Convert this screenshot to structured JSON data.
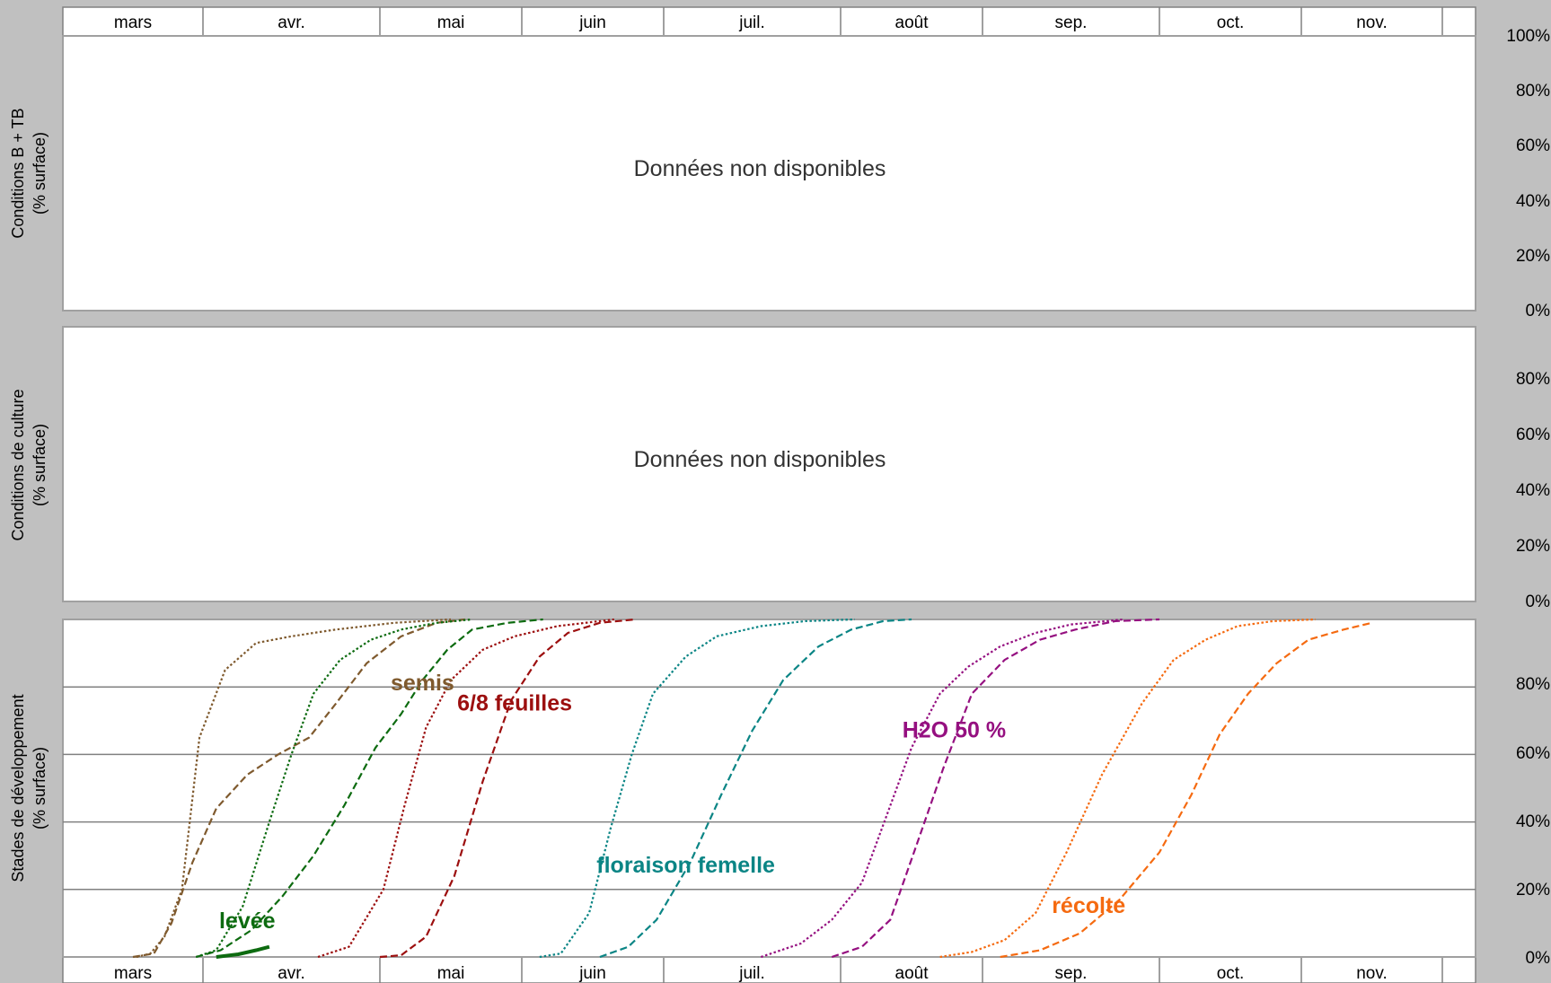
{
  "months": [
    "mars",
    "avr.",
    "mai",
    "juin",
    "juil.",
    "août",
    "sep.",
    "oct.",
    "nov."
  ],
  "panels": [
    {
      "ylabel_line1": "Conditions B + TB",
      "ylabel_line2": "(% surface)",
      "message": "Données non disponibles",
      "ticks": [
        "100%",
        "80%",
        "60%",
        "40%",
        "20%",
        "0%"
      ]
    },
    {
      "ylabel_line1": "Conditions de culture",
      "ylabel_line2": "(% surface)",
      "message": "Données non disponibles",
      "ticks": [
        "80%",
        "60%",
        "40%",
        "20%",
        "0%"
      ]
    },
    {
      "ylabel_line1": "Stades de développement",
      "ylabel_line2": "(% surface)",
      "ticks": [
        "80%",
        "60%",
        "40%",
        "20%",
        "0%"
      ]
    }
  ],
  "chart_data": {
    "type": "line",
    "x_unit": "month",
    "ylim": [
      0,
      100
    ],
    "grid": true,
    "series": [
      {
        "name": "semis",
        "color": "#7f5a2e",
        "label_pos": [
          4.6,
          79
        ],
        "lines": [
          {
            "style": "dotted",
            "points": [
              [
                1.05,
                0
              ],
              [
                1.25,
                1
              ],
              [
                1.45,
                6
              ],
              [
                1.7,
                20
              ],
              [
                1.95,
                65
              ],
              [
                2.25,
                85
              ],
              [
                2.6,
                93
              ],
              [
                3.0,
                95
              ],
              [
                3.5,
                97
              ],
              [
                4.2,
                99
              ],
              [
                5.0,
                100
              ]
            ]
          },
          {
            "style": "dashed",
            "points": [
              [
                1.0,
                0
              ],
              [
                1.3,
                1
              ],
              [
                1.55,
                10
              ],
              [
                1.85,
                28
              ],
              [
                2.15,
                44
              ],
              [
                2.5,
                54
              ],
              [
                2.85,
                60
              ],
              [
                3.2,
                65
              ],
              [
                3.5,
                75
              ],
              [
                3.85,
                87
              ],
              [
                4.3,
                95
              ],
              [
                4.8,
                99
              ],
              [
                5.2,
                100
              ]
            ]
          }
        ]
      },
      {
        "name": "levée",
        "color": "#0d6b10",
        "label_pos": [
          2.5,
          8.5
        ],
        "lines": [
          {
            "style": "dotted",
            "points": [
              [
                1.9,
                0
              ],
              [
                2.15,
                2
              ],
              [
                2.45,
                15
              ],
              [
                2.75,
                40
              ],
              [
                3.0,
                60
              ],
              [
                3.25,
                78
              ],
              [
                3.55,
                88
              ],
              [
                3.9,
                94
              ],
              [
                4.3,
                97
              ],
              [
                4.8,
                99
              ],
              [
                5.3,
                100
              ]
            ]
          },
          {
            "style": "dashed",
            "points": [
              [
                1.9,
                0
              ],
              [
                2.2,
                2
              ],
              [
                2.55,
                8
              ],
              [
                2.9,
                18
              ],
              [
                3.25,
                30
              ],
              [
                3.6,
                45
              ],
              [
                3.95,
                62
              ],
              [
                4.3,
                72
              ],
              [
                4.6,
                82
              ],
              [
                4.95,
                91
              ],
              [
                5.3,
                97
              ],
              [
                5.8,
                99
              ],
              [
                6.3,
                100
              ]
            ]
          },
          {
            "style": "solid",
            "points": [
              [
                2.15,
                0
              ],
              [
                2.4,
                0.8
              ],
              [
                2.6,
                2
              ],
              [
                2.75,
                3
              ]
            ]
          }
        ]
      },
      {
        "name": "6/8 feuilles",
        "color": "#9c0f0f",
        "label_pos": [
          5.9,
          73
        ],
        "lines": [
          {
            "style": "dotted",
            "points": [
              [
                3.3,
                0
              ],
              [
                3.65,
                3
              ],
              [
                4.05,
                20
              ],
              [
                4.35,
                45
              ],
              [
                4.65,
                68
              ],
              [
                5.0,
                82
              ],
              [
                5.45,
                91
              ],
              [
                5.9,
                95
              ],
              [
                6.5,
                98
              ],
              [
                7.3,
                100
              ]
            ]
          },
          {
            "style": "dashed",
            "points": [
              [
                4.0,
                0
              ],
              [
                4.3,
                0.5
              ],
              [
                4.65,
                6
              ],
              [
                5.05,
                24
              ],
              [
                5.45,
                52
              ],
              [
                5.85,
                76
              ],
              [
                6.25,
                89
              ],
              [
                6.65,
                96
              ],
              [
                7.1,
                99
              ],
              [
                7.6,
                100
              ]
            ]
          }
        ]
      },
      {
        "name": "floraison femelle",
        "color": "#0b8585",
        "label_pos": [
          8.25,
          25
        ],
        "lines": [
          {
            "style": "dotted",
            "points": [
              [
                6.25,
                0
              ],
              [
                6.55,
                1
              ],
              [
                6.95,
                13
              ],
              [
                7.25,
                38
              ],
              [
                7.55,
                60
              ],
              [
                7.85,
                78
              ],
              [
                8.25,
                89
              ],
              [
                8.6,
                95
              ],
              [
                9.1,
                98
              ],
              [
                9.6,
                99.5
              ],
              [
                10.2,
                100
              ]
            ]
          },
          {
            "style": "dashed",
            "points": [
              [
                7.1,
                0
              ],
              [
                7.5,
                3
              ],
              [
                7.9,
                11
              ],
              [
                8.3,
                28
              ],
              [
                8.65,
                48
              ],
              [
                9.0,
                67
              ],
              [
                9.35,
                82
              ],
              [
                9.75,
                92
              ],
              [
                10.15,
                97
              ],
              [
                10.6,
                99.5
              ],
              [
                11.0,
                100
              ]
            ]
          }
        ]
      },
      {
        "name": "H2O 50 %",
        "color": "#951080",
        "label_pos": [
          11.6,
          65
        ],
        "lines": [
          {
            "style": "dotted",
            "points": [
              [
                9.1,
                0
              ],
              [
                9.55,
                4
              ],
              [
                9.9,
                11
              ],
              [
                10.3,
                22
              ],
              [
                10.65,
                42
              ],
              [
                11.0,
                62
              ],
              [
                11.4,
                78
              ],
              [
                11.8,
                86
              ],
              [
                12.2,
                92
              ],
              [
                12.6,
                96
              ],
              [
                13.0,
                98.5
              ],
              [
                13.6,
                100
              ]
            ]
          },
          {
            "style": "dashed",
            "points": [
              [
                9.9,
                0
              ],
              [
                10.3,
                3
              ],
              [
                10.7,
                11
              ],
              [
                11.05,
                32
              ],
              [
                11.45,
                56
              ],
              [
                11.85,
                78
              ],
              [
                12.25,
                88
              ],
              [
                12.65,
                94
              ],
              [
                13.05,
                97
              ],
              [
                13.5,
                99.5
              ],
              [
                14.0,
                100
              ]
            ]
          }
        ]
      },
      {
        "name": "récolte",
        "color": "#f56a10",
        "label_pos": [
          13.2,
          13
        ],
        "lines": [
          {
            "style": "dotted",
            "points": [
              [
                11.4,
                0
              ],
              [
                11.85,
                1.5
              ],
              [
                12.25,
                5
              ],
              [
                12.6,
                13
              ],
              [
                12.95,
                31
              ],
              [
                13.35,
                54
              ],
              [
                13.8,
                75
              ],
              [
                14.2,
                88
              ],
              [
                14.65,
                94
              ],
              [
                15.1,
                98
              ],
              [
                15.6,
                99.5
              ],
              [
                16.2,
                100
              ]
            ]
          },
          {
            "style": "dashed",
            "points": [
              [
                12.2,
                0
              ],
              [
                12.65,
                2
              ],
              [
                13.1,
                7
              ],
              [
                13.55,
                17
              ],
              [
                14.0,
                31
              ],
              [
                14.45,
                48
              ],
              [
                14.85,
                66
              ],
              [
                15.25,
                78
              ],
              [
                15.65,
                87
              ],
              [
                16.1,
                94
              ],
              [
                16.6,
                97
              ],
              [
                17.0,
                99
              ]
            ]
          }
        ]
      }
    ]
  }
}
